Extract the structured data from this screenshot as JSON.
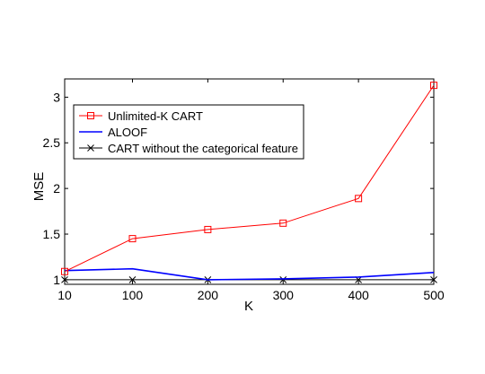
{
  "chart_data": {
    "type": "line",
    "title": "",
    "xlabel": "K",
    "ylabel": "MSE",
    "x": [
      10,
      100,
      200,
      300,
      400,
      500
    ],
    "x_tick_labels": [
      "10",
      "100",
      "200",
      "300",
      "400",
      "500"
    ],
    "y_tick_labels": [
      "1",
      "1.5",
      "2",
      "2.5",
      "3"
    ],
    "y_ticks": [
      1,
      1.5,
      2,
      2.5,
      3
    ],
    "ylim": [
      0.95,
      3.2
    ],
    "grid": false,
    "legend_position": "upper-left",
    "series": [
      {
        "name": "Unlimited-K CART",
        "color": "#ff0000",
        "marker": "square",
        "values": [
          1.09,
          1.45,
          1.55,
          1.62,
          1.89,
          3.13
        ]
      },
      {
        "name": "ALOOF",
        "color": "#0000ff",
        "marker": "none",
        "values": [
          1.1,
          1.12,
          1.0,
          1.01,
          1.03,
          1.08
        ]
      },
      {
        "name": "CART without the categorical feature",
        "color": "#000000",
        "marker": "x",
        "values": [
          1.0,
          1.0,
          1.0,
          1.0,
          1.0,
          1.0
        ]
      }
    ]
  }
}
